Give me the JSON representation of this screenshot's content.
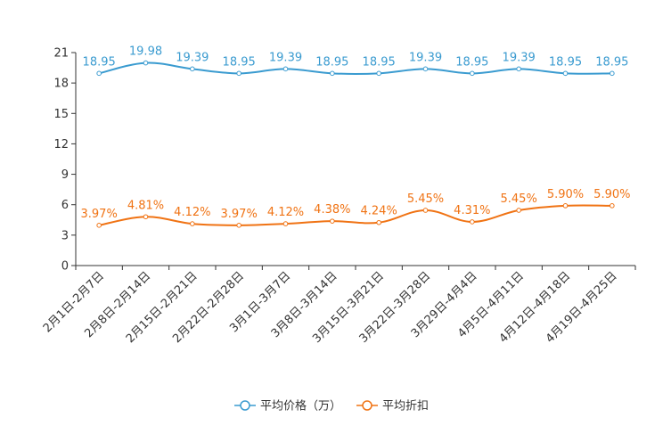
{
  "chart_data": {
    "type": "line",
    "categories": [
      "2月1日-2月7日",
      "2月8日-2月14日",
      "2月15日-2月21日",
      "2月22日-2月28日",
      "3月1日-3月7日",
      "3月8日-3月14日",
      "3月15日-3月21日",
      "3月22日-3月28日",
      "3月29日-4月4日",
      "4月5日-4月11日",
      "4月12日-4月18日",
      "4月19日-4月25日"
    ],
    "ylim": [
      0,
      21
    ],
    "yticks": [
      0,
      3,
      6,
      9,
      12,
      15,
      18,
      21
    ],
    "series": [
      {
        "name": "平均价格（万）",
        "color": "#3a9bd0",
        "values": [
          18.95,
          19.98,
          19.39,
          18.95,
          19.39,
          18.95,
          18.95,
          19.39,
          18.95,
          19.39,
          18.95,
          18.95
        ],
        "labels": [
          "18.95",
          "19.98",
          "19.39",
          "18.95",
          "19.39",
          "18.95",
          "18.95",
          "19.39",
          "18.95",
          "19.39",
          "18.95",
          "18.95"
        ]
      },
      {
        "name": "平均折扣",
        "color": "#f07314",
        "values": [
          3.97,
          4.81,
          4.12,
          3.97,
          4.12,
          4.38,
          4.24,
          5.45,
          4.31,
          5.45,
          5.9,
          5.9
        ],
        "labels": [
          "3.97%",
          "4.81%",
          "4.12%",
          "3.97%",
          "4.12%",
          "4.38%",
          "4.24%",
          "5.45%",
          "4.31%",
          "5.45%",
          "5.90%",
          "5.90%"
        ]
      }
    ]
  }
}
